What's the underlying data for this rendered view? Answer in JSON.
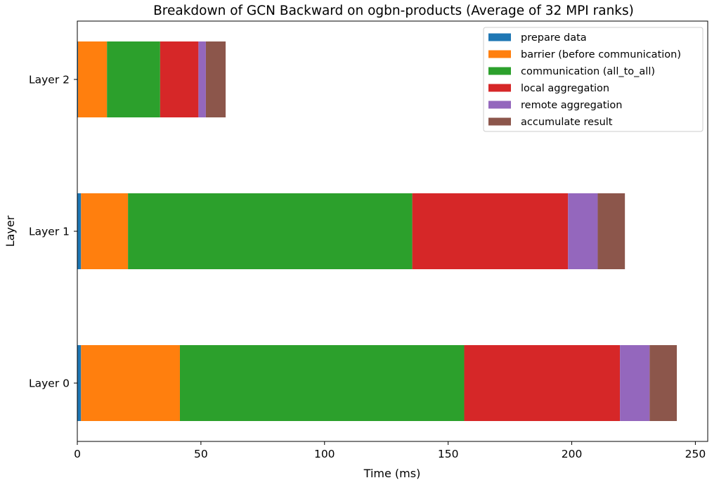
{
  "chart_data": {
    "type": "bar",
    "orientation": "horizontal",
    "stacked": true,
    "title": "Breakdown of GCN Backward on ogbn-products (Average of 32 MPI ranks)",
    "xlabel": "Time (ms)",
    "ylabel": "Layer",
    "categories": [
      "Layer 0",
      "Layer 1",
      "Layer 2"
    ],
    "xlim": [
      0,
      255
    ],
    "xticks": [
      0,
      50,
      100,
      150,
      200,
      250
    ],
    "grid": false,
    "legend_position": "top-right",
    "series": [
      {
        "name": "prepare data",
        "color": "#1f77b4",
        "values": [
          1.5,
          1.5,
          0.3
        ]
      },
      {
        "name": "barrier (before communication)",
        "color": "#ff7f0e",
        "values": [
          40.0,
          19.0,
          11.7
        ]
      },
      {
        "name": "communication (all_to_all)",
        "color": "#2ca02c",
        "values": [
          115.0,
          115.0,
          21.5
        ]
      },
      {
        "name": "local aggregation",
        "color": "#d62728",
        "values": [
          63.0,
          63.0,
          15.5
        ]
      },
      {
        "name": "remote aggregation",
        "color": "#9467bd",
        "values": [
          12.0,
          12.0,
          3.0
        ]
      },
      {
        "name": "accumulate result",
        "color": "#8c564b",
        "values": [
          11.0,
          11.0,
          8.0
        ]
      }
    ]
  }
}
